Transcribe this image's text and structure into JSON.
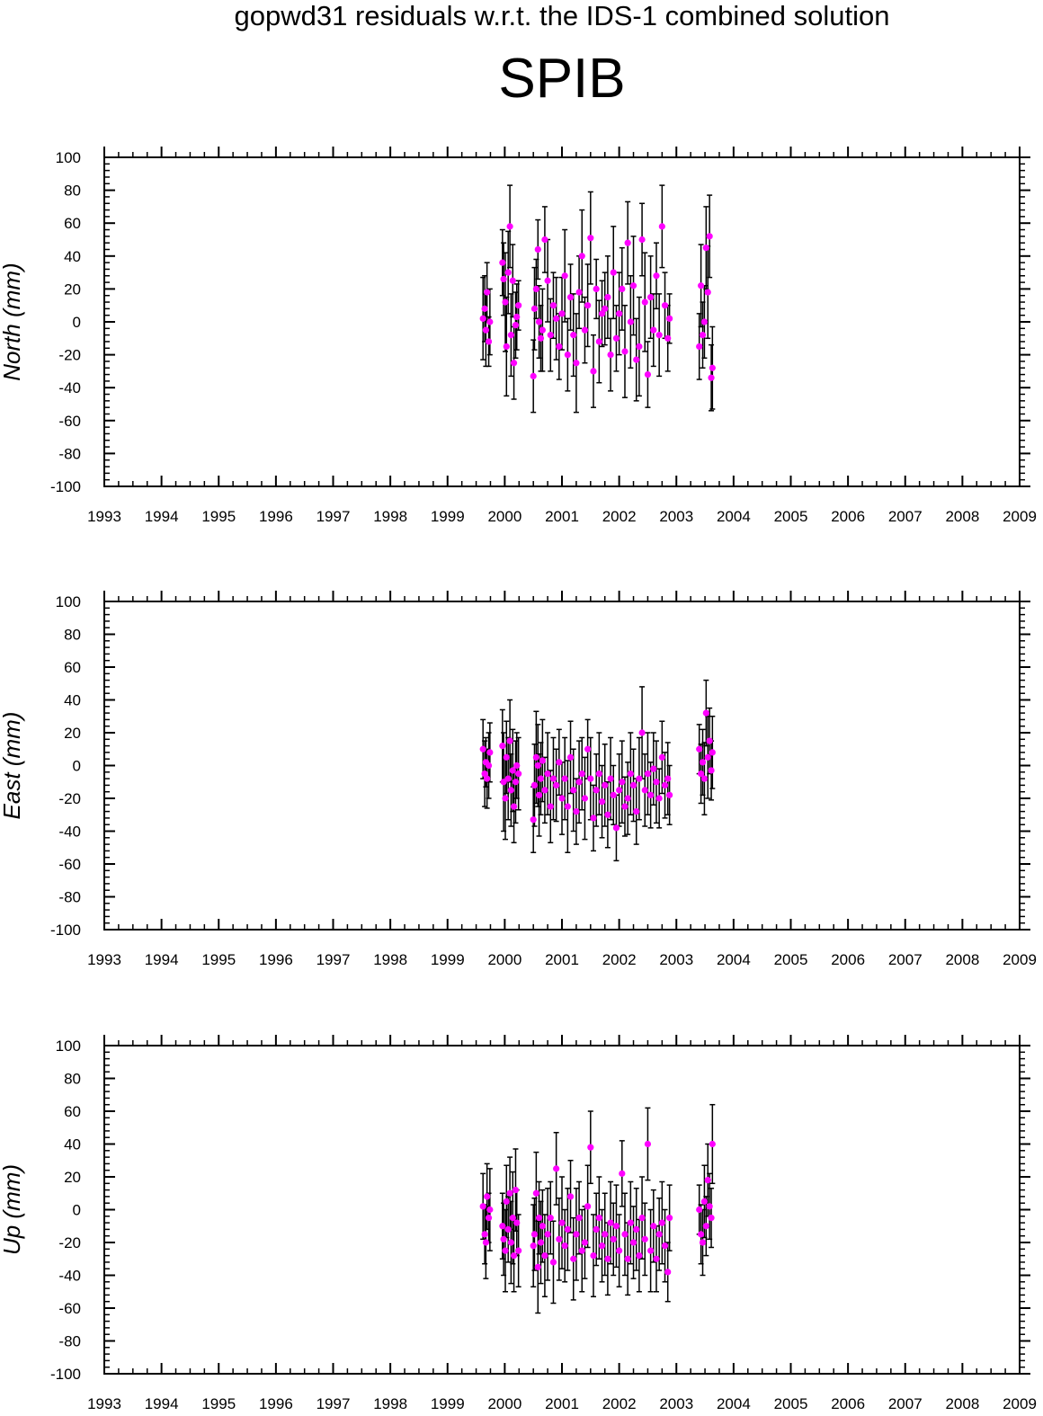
{
  "title": "gopwd31 residuals w.r.t. the IDS-1 combined solution",
  "station": "SPIB",
  "colors": {
    "marker": "#ff00ff",
    "errorbar": "#000000",
    "axis": "#000000",
    "background": "#ffffff"
  },
  "chart_data": [
    {
      "type": "scatter",
      "title": "",
      "xlabel": "",
      "ylabel": "North (mm)",
      "xlim": [
        1993,
        2009
      ],
      "ylim": [
        -100,
        100
      ],
      "x_ticks": [
        "1993",
        "1994",
        "1995",
        "1996",
        "1997",
        "1998",
        "1999",
        "2000",
        "2001",
        "2002",
        "2003",
        "2004",
        "2005",
        "2006",
        "2007",
        "2008",
        "2009"
      ],
      "y_ticks": [
        "100",
        "80",
        "60",
        "40",
        "20",
        "0",
        "-20",
        "-40",
        "-60",
        "-80",
        "-100"
      ],
      "grid": false,
      "error_bars": true,
      "series": [
        {
          "x": [
            1999.62,
            1999.65,
            1999.67,
            1999.69,
            1999.72,
            1999.74,
            1999.96,
            1999.98,
            2000.01,
            2000.03,
            2000.06,
            2000.09,
            2000.11,
            2000.14,
            2000.16,
            2000.19,
            2000.21,
            2000.24,
            2000.5,
            2000.52,
            2000.55,
            2000.58,
            2000.6,
            2000.63,
            2000.66,
            2000.7,
            2000.75,
            2000.8,
            2000.85,
            2000.9,
            2000.95,
            2001.0,
            2001.05,
            2001.1,
            2001.15,
            2001.2,
            2001.25,
            2001.3,
            2001.35,
            2001.4,
            2001.45,
            2001.5,
            2001.55,
            2001.6,
            2001.65,
            2001.7,
            2001.75,
            2001.8,
            2001.85,
            2001.9,
            2001.95,
            2002.0,
            2002.05,
            2002.1,
            2002.15,
            2002.2,
            2002.25,
            2002.3,
            2002.35,
            2002.4,
            2002.45,
            2002.5,
            2002.55,
            2002.6,
            2002.65,
            2002.7,
            2002.75,
            2002.8,
            2002.85,
            2002.88,
            2003.4,
            2003.43,
            2003.46,
            2003.49,
            2003.52,
            2003.55,
            2003.58,
            2003.61,
            2003.63
          ],
          "y": [
            2,
            8,
            -5,
            18,
            -12,
            0,
            36,
            26,
            12,
            -15,
            30,
            58,
            -8,
            25,
            -25,
            -2,
            3,
            10,
            -33,
            8,
            20,
            44,
            0,
            -10,
            -5,
            50,
            25,
            -8,
            10,
            2,
            -15,
            5,
            28,
            -20,
            15,
            -8,
            -25,
            18,
            40,
            -5,
            10,
            51,
            -30,
            20,
            -12,
            5,
            8,
            15,
            -20,
            30,
            -10,
            5,
            20,
            -18,
            48,
            0,
            22,
            -23,
            -15,
            50,
            12,
            -32,
            15,
            -5,
            28,
            -8,
            58,
            10,
            -10,
            2,
            -15,
            22,
            -8,
            0,
            45,
            18,
            52,
            -34,
            -28
          ],
          "err": [
            25,
            20,
            22,
            18,
            15,
            20,
            20,
            22,
            30,
            30,
            25,
            25,
            25,
            22,
            22,
            20,
            20,
            15,
            22,
            25,
            18,
            18,
            22,
            20,
            25,
            20,
            25,
            22,
            20,
            25,
            20,
            22,
            28,
            22,
            20,
            25,
            30,
            22,
            28,
            20,
            25,
            28,
            22,
            18,
            25,
            20,
            22,
            25,
            22,
            28,
            20,
            25,
            25,
            28,
            25,
            28,
            30,
            25,
            30,
            22,
            30,
            20,
            25,
            22,
            20,
            25,
            25,
            20,
            20,
            15,
            20,
            25,
            20,
            22,
            25,
            28,
            25,
            20,
            25
          ]
        }
      ]
    },
    {
      "type": "scatter",
      "title": "",
      "xlabel": "",
      "ylabel": "East (mm)",
      "xlim": [
        1993,
        2009
      ],
      "ylim": [
        -100,
        100
      ],
      "x_ticks": [
        "1993",
        "1994",
        "1995",
        "1996",
        "1997",
        "1998",
        "1999",
        "2000",
        "2001",
        "2002",
        "2003",
        "2004",
        "2005",
        "2006",
        "2007",
        "2008",
        "2009"
      ],
      "y_ticks": [
        "100",
        "80",
        "60",
        "40",
        "20",
        "0",
        "-20",
        "-40",
        "-60",
        "-80",
        "-100"
      ],
      "grid": false,
      "error_bars": true,
      "series": [
        {
          "x": [
            1999.62,
            1999.65,
            1999.67,
            1999.69,
            1999.72,
            1999.74,
            1999.96,
            1999.98,
            2000.01,
            2000.03,
            2000.06,
            2000.09,
            2000.11,
            2000.14,
            2000.16,
            2000.19,
            2000.21,
            2000.24,
            2000.5,
            2000.52,
            2000.55,
            2000.58,
            2000.6,
            2000.63,
            2000.66,
            2000.7,
            2000.75,
            2000.8,
            2000.85,
            2000.9,
            2000.95,
            2001.0,
            2001.05,
            2001.1,
            2001.15,
            2001.2,
            2001.25,
            2001.3,
            2001.35,
            2001.4,
            2001.45,
            2001.5,
            2001.55,
            2001.6,
            2001.65,
            2001.7,
            2001.75,
            2001.8,
            2001.85,
            2001.9,
            2001.95,
            2002.0,
            2002.05,
            2002.1,
            2002.15,
            2002.2,
            2002.25,
            2002.3,
            2002.35,
            2002.4,
            2002.45,
            2002.5,
            2002.55,
            2002.6,
            2002.65,
            2002.7,
            2002.75,
            2002.8,
            2002.85,
            2002.88,
            2003.4,
            2003.43,
            2003.46,
            2003.49,
            2003.52,
            2003.55,
            2003.58,
            2003.61,
            2003.63
          ],
          "y": [
            10,
            -5,
            2,
            -8,
            0,
            8,
            12,
            -10,
            -20,
            5,
            -8,
            15,
            -15,
            -3,
            -25,
            -10,
            0,
            -5,
            -33,
            -12,
            5,
            0,
            -18,
            -8,
            3,
            -15,
            -5,
            -25,
            -8,
            -12,
            2,
            -20,
            -8,
            -25,
            5,
            -15,
            -28,
            -10,
            -5,
            -20,
            10,
            -8,
            -32,
            -15,
            -5,
            -22,
            -12,
            -30,
            -8,
            -18,
            -38,
            -15,
            -10,
            -25,
            -20,
            -5,
            -12,
            -28,
            -8,
            20,
            -15,
            -5,
            -18,
            -2,
            -10,
            -20,
            5,
            -12,
            -8,
            -18,
            10,
            -5,
            2,
            -8,
            32,
            5,
            15,
            -3,
            8
          ],
          "err": [
            18,
            20,
            15,
            18,
            20,
            18,
            22,
            30,
            25,
            22,
            25,
            25,
            22,
            25,
            22,
            25,
            20,
            22,
            20,
            25,
            28,
            25,
            25,
            22,
            25,
            20,
            25,
            22,
            25,
            22,
            20,
            22,
            25,
            28,
            22,
            25,
            20,
            25,
            22,
            25,
            18,
            25,
            20,
            22,
            25,
            22,
            25,
            20,
            25,
            18,
            20,
            22,
            25,
            18,
            22,
            25,
            22,
            20,
            25,
            28,
            22,
            25,
            20,
            22,
            25,
            18,
            22,
            20,
            22,
            18,
            15,
            18,
            20,
            22,
            20,
            25,
            20,
            18,
            22
          ]
        }
      ]
    },
    {
      "type": "scatter",
      "title": "",
      "xlabel": "",
      "ylabel": "Up (mm)",
      "xlim": [
        1993,
        2009
      ],
      "ylim": [
        -100,
        100
      ],
      "x_ticks": [
        "1993",
        "1994",
        "1995",
        "1996",
        "1997",
        "1998",
        "1999",
        "2000",
        "2001",
        "2002",
        "2003",
        "2004",
        "2005",
        "2006",
        "2007",
        "2008",
        "2009"
      ],
      "y_ticks": [
        "100",
        "80",
        "60",
        "40",
        "20",
        "0",
        "-20",
        "-40",
        "-60",
        "-80",
        "-100"
      ],
      "grid": false,
      "error_bars": true,
      "series": [
        {
          "x": [
            1999.62,
            1999.65,
            1999.67,
            1999.69,
            1999.72,
            1999.74,
            1999.96,
            1999.98,
            2000.01,
            2000.03,
            2000.06,
            2000.09,
            2000.11,
            2000.14,
            2000.16,
            2000.19,
            2000.21,
            2000.24,
            2000.5,
            2000.52,
            2000.55,
            2000.58,
            2000.6,
            2000.63,
            2000.66,
            2000.7,
            2000.75,
            2000.8,
            2000.85,
            2000.9,
            2000.95,
            2001.0,
            2001.05,
            2001.1,
            2001.15,
            2001.2,
            2001.25,
            2001.3,
            2001.35,
            2001.4,
            2001.45,
            2001.5,
            2001.55,
            2001.6,
            2001.65,
            2001.7,
            2001.75,
            2001.8,
            2001.85,
            2001.9,
            2001.95,
            2002.0,
            2002.05,
            2002.1,
            2002.15,
            2002.2,
            2002.25,
            2002.3,
            2002.35,
            2002.4,
            2002.45,
            2002.5,
            2002.55,
            2002.6,
            2002.65,
            2002.7,
            2002.75,
            2002.8,
            2002.85,
            2002.88,
            2003.4,
            2003.43,
            2003.46,
            2003.49,
            2003.52,
            2003.55,
            2003.58,
            2003.61,
            2003.63
          ],
          "y": [
            2,
            -15,
            -20,
            8,
            -5,
            0,
            -10,
            -18,
            -25,
            5,
            -12,
            10,
            -20,
            -5,
            -28,
            12,
            -8,
            -25,
            -22,
            -15,
            10,
            -35,
            -5,
            -20,
            -10,
            -28,
            -15,
            -5,
            -32,
            25,
            -18,
            -8,
            -22,
            -12,
            8,
            -30,
            -15,
            -5,
            -25,
            -20,
            2,
            38,
            -28,
            -12,
            -5,
            -22,
            -15,
            -30,
            -8,
            -18,
            -10,
            -25,
            22,
            -15,
            -30,
            -8,
            -20,
            -12,
            -28,
            -5,
            -18,
            40,
            -25,
            -10,
            -30,
            -15,
            -8,
            -22,
            -38,
            -5,
            0,
            -15,
            -20,
            5,
            -10,
            18,
            2,
            -5,
            40
          ],
          "err": [
            20,
            18,
            22,
            20,
            15,
            25,
            20,
            22,
            25,
            22,
            20,
            22,
            25,
            28,
            22,
            25,
            20,
            22,
            25,
            22,
            25,
            28,
            22,
            25,
            22,
            25,
            28,
            22,
            25,
            22,
            25,
            28,
            22,
            25,
            22,
            25,
            28,
            22,
            25,
            22,
            25,
            22,
            25,
            22,
            25,
            22,
            25,
            22,
            25,
            22,
            25,
            22,
            20,
            25,
            22,
            25,
            22,
            25,
            22,
            25,
            22,
            22,
            25,
            22,
            20,
            22,
            25,
            22,
            18,
            20,
            15,
            18,
            20,
            22,
            18,
            22,
            20,
            18,
            24
          ]
        }
      ]
    }
  ]
}
